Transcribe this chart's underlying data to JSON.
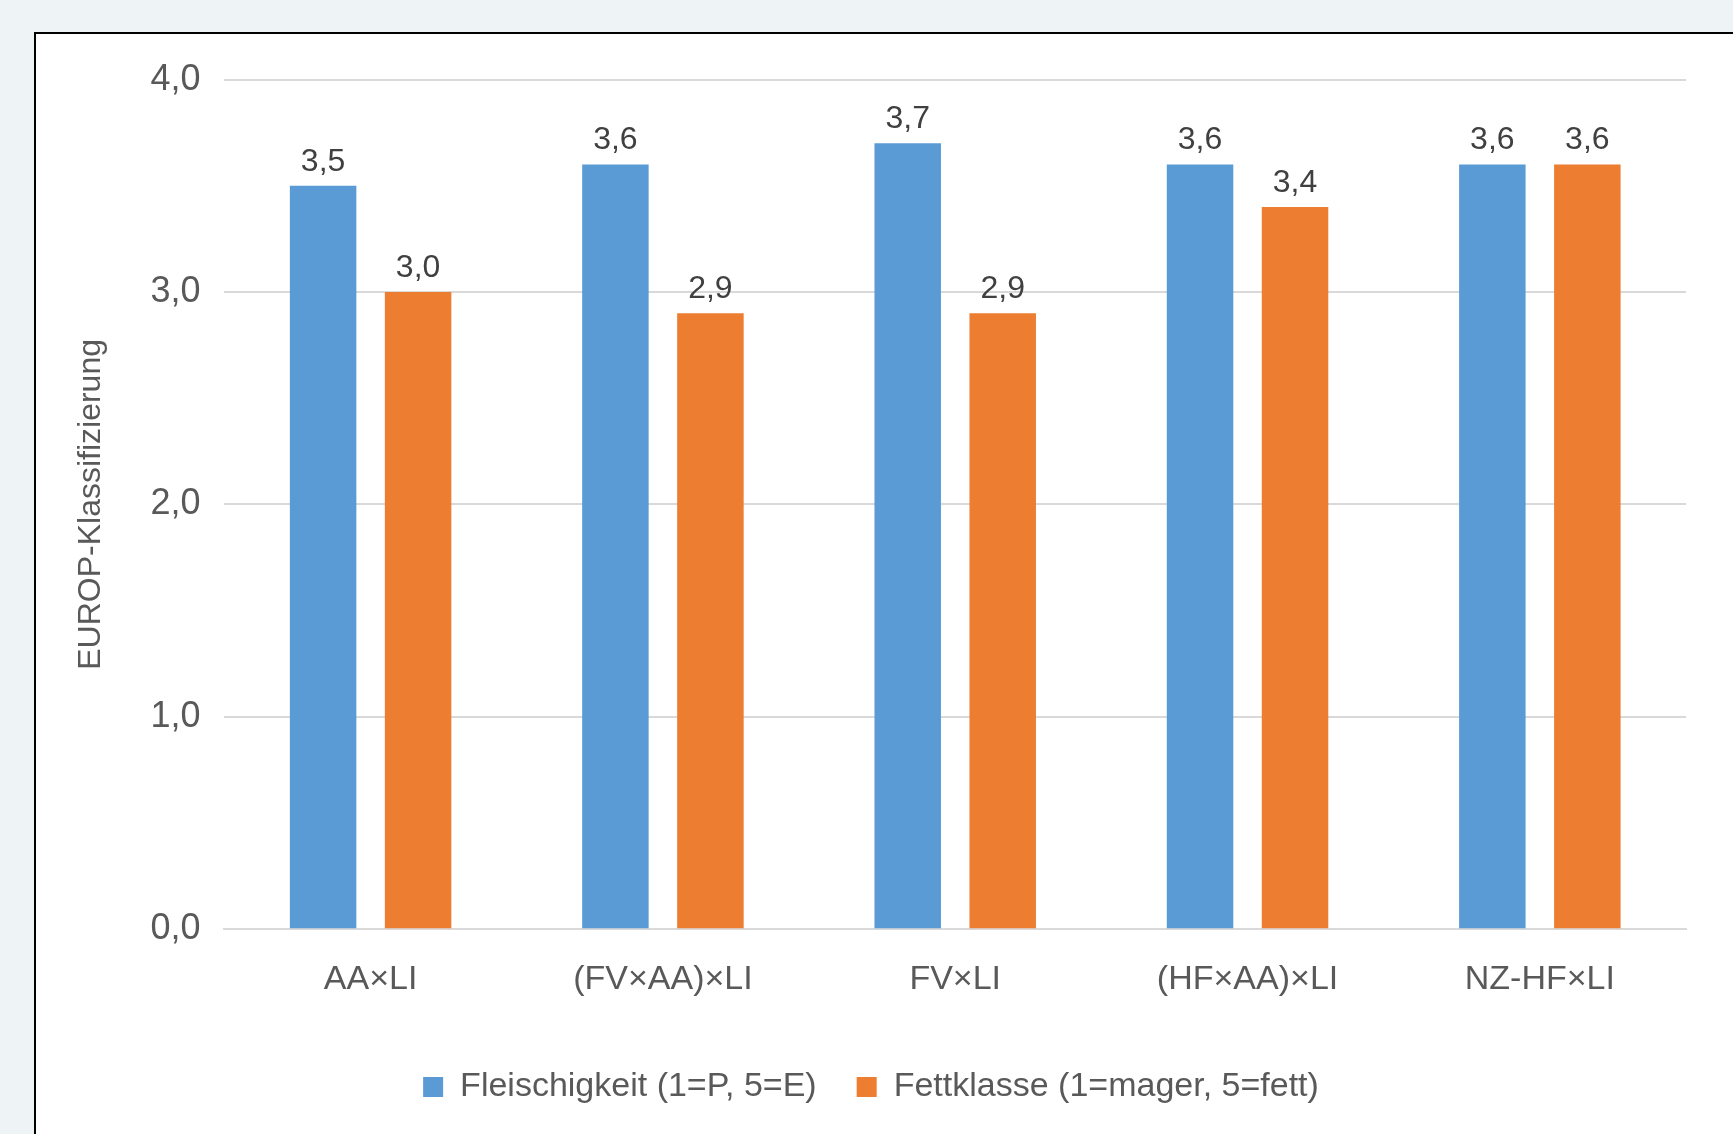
{
  "chart_data": {
    "type": "bar",
    "ylabel": "EUROP-Klassifizierung",
    "categories": [
      "AA×LI",
      "(FV×AA)×LI",
      "FV×LI",
      "(HF×AA)×LI",
      "NZ-HF×LI"
    ],
    "series": [
      {
        "name": "Fleischigkeit (1=P, 5=E)",
        "color": "#5b9bd5",
        "values": [
          3.5,
          3.6,
          3.7,
          3.6,
          3.6
        ],
        "value_labels": [
          "3,5",
          "3,6",
          "3,7",
          "3,6",
          "3,6"
        ]
      },
      {
        "name": "Fettklasse (1=mager, 5=fett)",
        "color": "#ed7d31",
        "values": [
          3.0,
          2.9,
          2.9,
          3.4,
          3.6
        ],
        "value_labels": [
          "3,0",
          "2,9",
          "2,9",
          "3,4",
          "3,6"
        ]
      }
    ],
    "ylim": [
      0,
      4
    ],
    "yticks": [
      {
        "value": 0,
        "label": "0,0"
      },
      {
        "value": 1,
        "label": "1,0"
      },
      {
        "value": 2,
        "label": "2,0"
      },
      {
        "value": 3,
        "label": "3,0"
      },
      {
        "value": 4,
        "label": "4,0"
      }
    ],
    "grid": "y",
    "legend": "bottom"
  }
}
